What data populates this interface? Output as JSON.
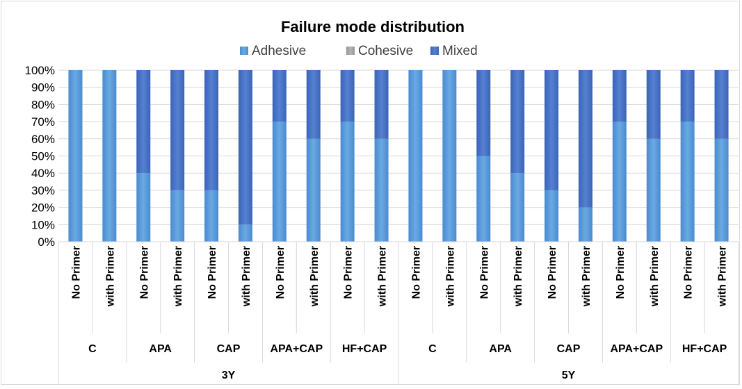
{
  "chart_data": {
    "type": "bar",
    "stacked": true,
    "normalized": true,
    "title": "Failure mode distribution",
    "xlabel": "",
    "ylabel": "",
    "ylim": [
      0,
      100
    ],
    "y_ticks": [
      "0%",
      "10%",
      "20%",
      "30%",
      "40%",
      "50%",
      "60%",
      "70%",
      "80%",
      "90%",
      "100%"
    ],
    "legend_position": "top",
    "groups": [
      {
        "label": "3Y",
        "subgroups": [
          {
            "label": "C",
            "categories": [
              "No Primer",
              "with Primer"
            ]
          },
          {
            "label": "APA",
            "categories": [
              "No Primer",
              "with Primer"
            ]
          },
          {
            "label": "CAP",
            "categories": [
              "No Primer",
              "with Primer"
            ]
          },
          {
            "label": "APA+CAP",
            "categories": [
              "No Primer",
              "with Primer"
            ]
          },
          {
            "label": "HF+CAP",
            "categories": [
              "No Primer",
              "with Primer"
            ]
          }
        ]
      },
      {
        "label": "5Y",
        "subgroups": [
          {
            "label": "C",
            "categories": [
              "No Primer",
              "with Primer"
            ]
          },
          {
            "label": "APA",
            "categories": [
              "No Primer",
              "with Primer"
            ]
          },
          {
            "label": "CAP",
            "categories": [
              "No Primer",
              "with Primer"
            ]
          },
          {
            "label": "APA+CAP",
            "categories": [
              "No Primer",
              "with Primer"
            ]
          },
          {
            "label": "HF+CAP",
            "categories": [
              "No Primer",
              "with Primer"
            ]
          }
        ]
      }
    ],
    "series": [
      {
        "name": "Adhesive",
        "color": "#5b9bd5",
        "values": [
          100,
          100,
          40,
          30,
          30,
          10,
          70,
          60,
          70,
          60,
          100,
          100,
          50,
          40,
          30,
          20,
          70,
          60,
          70,
          60
        ]
      },
      {
        "name": "Cohesive",
        "color": "#a5a5a5",
        "values": [
          0,
          0,
          0,
          0,
          0,
          0,
          0,
          0,
          0,
          0,
          0,
          0,
          0,
          0,
          0,
          0,
          0,
          0,
          0,
          0
        ]
      },
      {
        "name": "Mixed",
        "color": "#4472c4",
        "values": [
          0,
          0,
          60,
          70,
          70,
          90,
          30,
          40,
          30,
          40,
          0,
          0,
          50,
          60,
          70,
          80,
          30,
          40,
          30,
          40
        ]
      }
    ]
  }
}
